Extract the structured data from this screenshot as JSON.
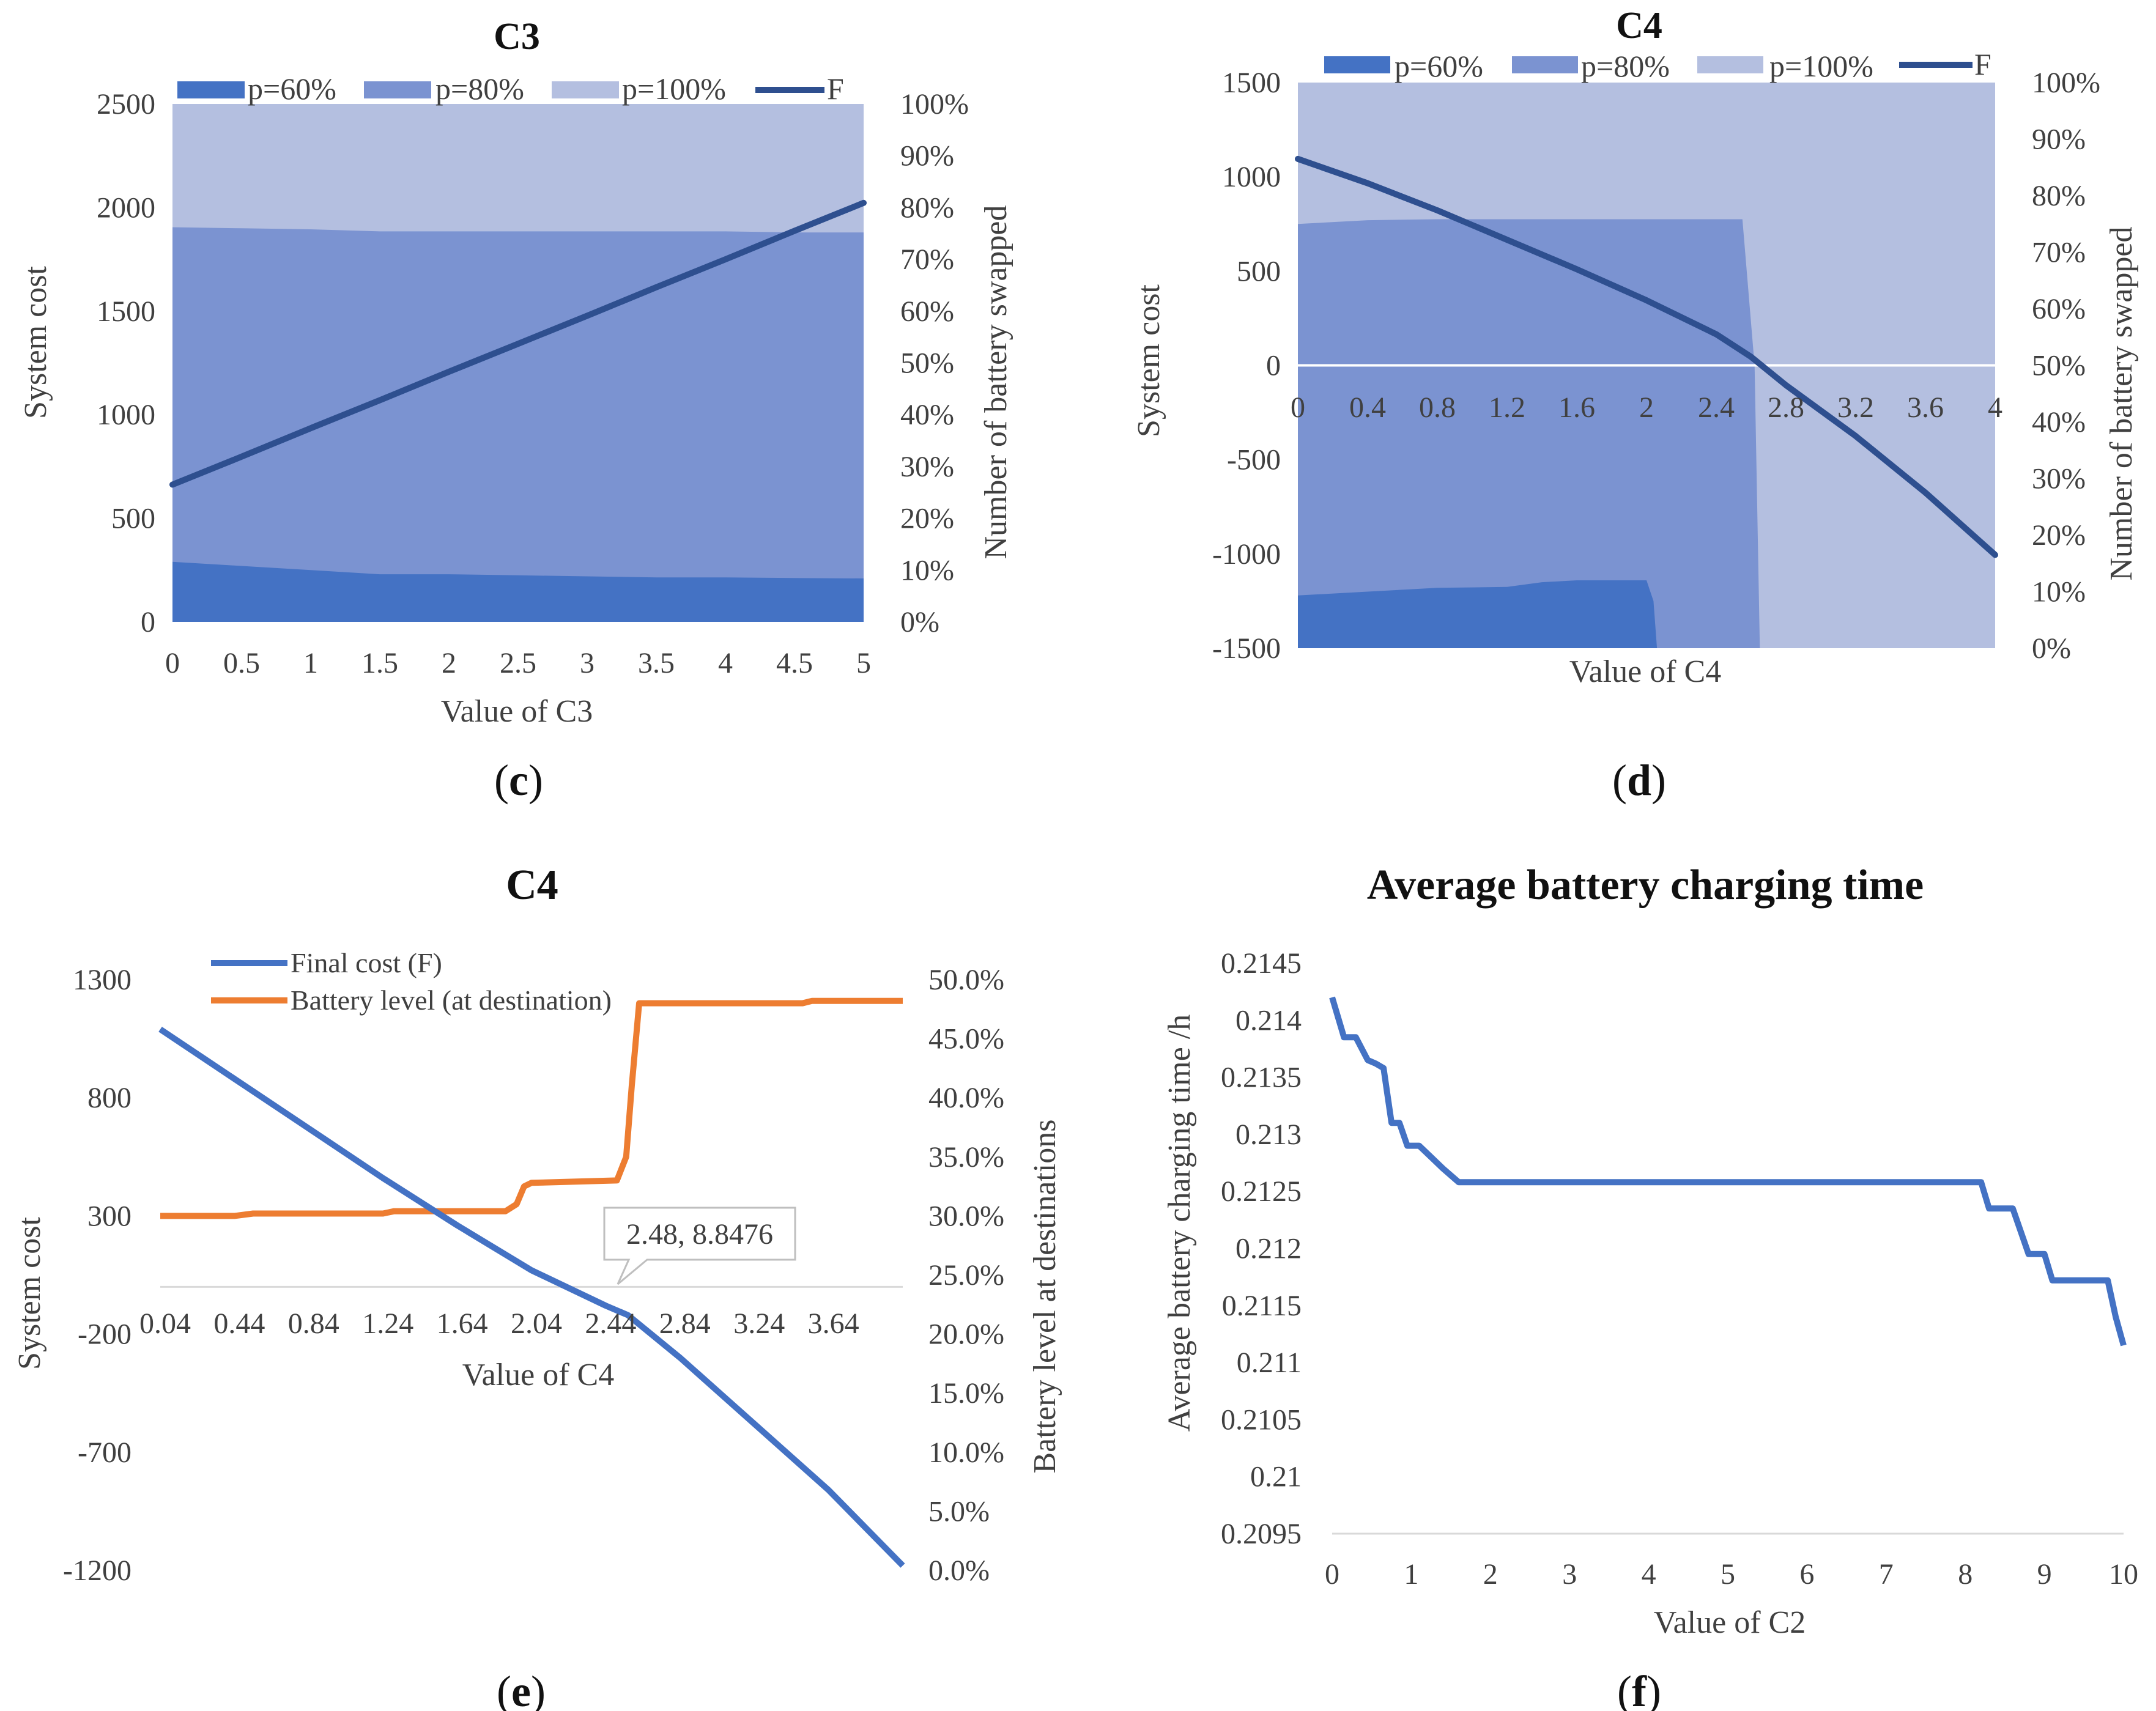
{
  "chart_data": [
    {
      "id": "c",
      "type": "area",
      "title": "C3",
      "xlabel": "Value of C3",
      "ylabel": "System cost",
      "y2label": "Number of battery swapped",
      "caption": "(c)",
      "caption_letter": "c",
      "xlim": [
        0,
        5
      ],
      "ylim": [
        0,
        2500
      ],
      "y2lim": [
        0,
        100
      ],
      "x_ticks": [
        "0",
        "0.5",
        "1",
        "1.5",
        "2",
        "2.5",
        "3",
        "3.5",
        "4",
        "4.5",
        "5"
      ],
      "y_ticks": [
        "0",
        "500",
        "1000",
        "1500",
        "2000",
        "2500"
      ],
      "y2_ticks": [
        "0%",
        "10%",
        "20%",
        "30%",
        "40%",
        "50%",
        "60%",
        "70%",
        "80%",
        "90%",
        "100%"
      ],
      "legend": [
        "p=60%",
        "p=80%",
        "p=100%",
        "F"
      ],
      "colors": {
        "p60": "#4472c4",
        "p80": "#7b93d1",
        "p100": "#b4bfe0",
        "F": "#2e4f8f"
      },
      "stack_top": 2500,
      "x": [
        0,
        0.5,
        1,
        1.5,
        2,
        2.5,
        3,
        3.5,
        4,
        4.5,
        5
      ],
      "p60_boundary": [
        290,
        270,
        250,
        230,
        230,
        225,
        220,
        215,
        215,
        212,
        210
      ],
      "p80_boundary": [
        1905,
        1900,
        1895,
        1885,
        1885,
        1885,
        1885,
        1885,
        1885,
        1880,
        1880
      ],
      "F_percent": [
        26.5,
        31.9,
        37.4,
        42.8,
        48.3,
        53.7,
        59.1,
        64.6,
        70.0,
        75.5,
        80.9
      ]
    },
    {
      "id": "d",
      "type": "area",
      "title": "C4",
      "xlabel": "Value of C4",
      "ylabel": "System cost",
      "y2label": "Number of battery swapped",
      "caption": "(d)",
      "caption_letter": "d",
      "xlim": [
        0,
        4
      ],
      "ylim": [
        -1500,
        1500
      ],
      "y2lim": [
        0,
        100
      ],
      "x_ticks": [
        "0",
        "0.4",
        "0.8",
        "1.2",
        "1.6",
        "2",
        "2.4",
        "2.8",
        "3.2",
        "3.6",
        "4"
      ],
      "y_ticks": [
        "-1500",
        "-1000",
        "-500",
        "0",
        "500",
        "1000",
        "1500"
      ],
      "y2_ticks": [
        "0%",
        "10%",
        "20%",
        "30%",
        "40%",
        "50%",
        "60%",
        "70%",
        "80%",
        "90%",
        "100%"
      ],
      "legend": [
        "p=60%",
        "p=80%",
        "p=100%",
        "F"
      ],
      "colors": {
        "p60": "#4472c4",
        "p80": "#7b93d1",
        "p100": "#b4bfe0",
        "F": "#2e4f8f"
      },
      "stack_top": 1500,
      "x": [
        0,
        0.4,
        0.8,
        1.2,
        1.4,
        1.6,
        2.0,
        2.04,
        2.06,
        2.5,
        2.55,
        2.62,
        2.65,
        3.2,
        4
      ],
      "p60_boundary": [
        -1220,
        -1200,
        -1180,
        -1175,
        -1150,
        -1140,
        -1140,
        -1250,
        -1500,
        -1500,
        -1500,
        -1500,
        -1500,
        -1500,
        -1500
      ],
      "p80_boundary": [
        750,
        770,
        775,
        775,
        775,
        775,
        775,
        775,
        775,
        775,
        775,
        0,
        -1500,
        -1500,
        -1500
      ],
      "F_x": [
        0,
        0.4,
        0.8,
        1.2,
        1.6,
        2.0,
        2.4,
        2.6,
        2.8,
        3.2,
        3.6,
        4
      ],
      "F_percent": [
        86.5,
        82.2,
        77.4,
        72.2,
        67.0,
        61.5,
        55.5,
        51.5,
        46.5,
        37.5,
        27.5,
        16.5
      ]
    },
    {
      "id": "e",
      "type": "line",
      "title": "C4",
      "xlabel": "Value of C4",
      "ylabel": "System cost",
      "y2label": "Battery level at  destinations",
      "caption": "(e)",
      "caption_letter": "e",
      "xlim": [
        0.04,
        4.04
      ],
      "ylim": [
        -1200,
        1300
      ],
      "y2lim": [
        0,
        50
      ],
      "x_ticks": [
        "0.04",
        "0.44",
        "0.84",
        "1.24",
        "1.64",
        "2.04",
        "2.44",
        "2.84",
        "3.24",
        "3.64"
      ],
      "y_ticks": [
        "-1200",
        "-700",
        "-200",
        "300",
        "800",
        "1300"
      ],
      "y2_ticks": [
        "0.0%",
        "5.0%",
        "10.0%",
        "15.0%",
        "20.0%",
        "25.0%",
        "30.0%",
        "35.0%",
        "40.0%",
        "45.0%",
        "50.0%"
      ],
      "series": [
        {
          "name": "Final cost (F)",
          "axis": "left",
          "color": "#4472c4",
          "x": [
            0.04,
            0.44,
            0.84,
            1.24,
            1.64,
            2.04,
            2.44,
            2.56,
            2.84,
            3.24,
            3.64,
            4.04
          ],
          "values": [
            1090,
            880,
            670,
            460,
            260,
            70,
            -80,
            -120,
            -300,
            -580,
            -860,
            -1180
          ]
        },
        {
          "name": "Battery level (at destination)",
          "axis": "right",
          "color": "#ed7d31",
          "x": [
            0.04,
            0.44,
            0.54,
            1.24,
            1.3,
            1.9,
            1.96,
            2.0,
            2.04,
            2.5,
            2.55,
            2.58,
            2.62,
            3.5,
            3.55,
            4.04
          ],
          "values": [
            30.0,
            30.0,
            30.2,
            30.2,
            30.4,
            30.4,
            31.0,
            32.5,
            32.8,
            33.0,
            35.0,
            41.0,
            48.0,
            48.0,
            48.2,
            48.2
          ]
        }
      ],
      "annotation": {
        "x": 2.48,
        "y": 8.8476,
        "label": "2.48, 8.8476"
      }
    },
    {
      "id": "f",
      "type": "line",
      "title": "Average battery charging time",
      "xlabel": "Value of C2",
      "ylabel": "Average battery charging time /h",
      "caption": "(f)",
      "caption_letter": "f",
      "xlim": [
        0,
        10
      ],
      "ylim": [
        0.2095,
        0.2145
      ],
      "x_ticks": [
        "0",
        "1",
        "2",
        "3",
        "4",
        "5",
        "6",
        "7",
        "8",
        "9",
        "10"
      ],
      "y_ticks": [
        "0.2095",
        "0.21",
        "0.2105",
        "0.211",
        "0.2115",
        "0.212",
        "0.2125",
        "0.213",
        "0.2135",
        "0.214",
        "0.2145"
      ],
      "series": [
        {
          "name": "Average battery charging time",
          "color": "#4472c4",
          "x": [
            0,
            0.15,
            0.3,
            0.45,
            0.55,
            0.65,
            0.75,
            0.85,
            0.95,
            1.1,
            1.25,
            1.4,
            1.6,
            2,
            8.2,
            8.3,
            8.6,
            8.8,
            9.0,
            9.1,
            9.8,
            9.9,
            10
          ],
          "values": [
            0.2142,
            0.21385,
            0.21385,
            0.21365,
            0.21362,
            0.21358,
            0.2131,
            0.2131,
            0.2129,
            0.2129,
            0.2128,
            0.2127,
            0.21258,
            0.21258,
            0.21258,
            0.21235,
            0.21235,
            0.21195,
            0.21195,
            0.21172,
            0.21172,
            0.2114,
            0.21115
          ]
        }
      ]
    }
  ]
}
